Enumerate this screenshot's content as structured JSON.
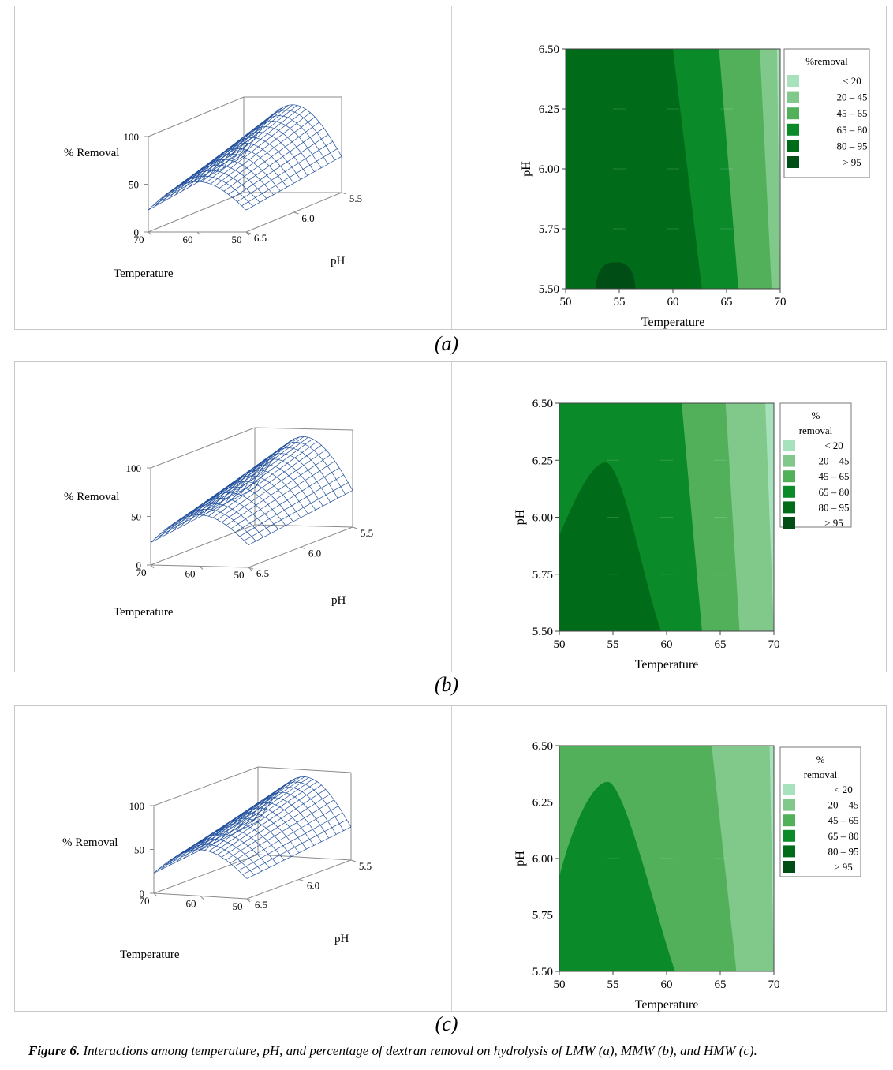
{
  "panels": [
    {
      "label": "(a)",
      "surface": {
        "z_axis_label": "% Removal",
        "x_axis_label": "Temperature",
        "y_axis_label": "pH",
        "z_ticks": [
          "0",
          "50",
          "100"
        ],
        "temp_ticks": [
          "70",
          "60",
          "50"
        ],
        "ph_ticks": [
          "6.5",
          "6.0",
          "5.5"
        ]
      },
      "legend_title_lines": [
        "%removal"
      ]
    },
    {
      "label": "(b)",
      "surface": {
        "z_axis_label": "% Removal",
        "x_axis_label": "Temperature",
        "y_axis_label": "pH",
        "z_ticks": [
          "0",
          "50",
          "100"
        ],
        "temp_ticks": [
          "70",
          "60",
          "50"
        ],
        "ph_ticks": [
          "6.5",
          "6.0",
          "5.5"
        ]
      },
      "legend_title_lines": [
        "%",
        "removal"
      ]
    },
    {
      "label": "(c)",
      "surface": {
        "z_axis_label": "% Removal",
        "x_axis_label": "Temperature",
        "y_axis_label": "pH",
        "z_ticks": [
          "0",
          "50",
          "100"
        ],
        "temp_ticks": [
          "70",
          "60",
          "50"
        ],
        "ph_ticks": [
          "6.5",
          "6.0",
          "5.5"
        ]
      },
      "legend_title_lines": [
        "%",
        "removal"
      ]
    }
  ],
  "chart_data": [
    {
      "type": "surface",
      "panel": "a",
      "xlabel": "Temperature",
      "ylabel": "pH",
      "zlabel": "% Removal",
      "x_ticks": [
        70,
        60,
        50
      ],
      "y_ticks": [
        6.5,
        6.0,
        5.5
      ],
      "z_ticks": [
        0,
        50,
        100
      ],
      "zlim": [
        0,
        100
      ],
      "colors": {
        "mesh": "#1f4e9c"
      }
    },
    {
      "type": "contour",
      "panel": "a",
      "xlabel": "Temperature",
      "ylabel": "pH",
      "xlim": [
        50,
        70
      ],
      "ylim": [
        5.5,
        6.5
      ],
      "x_ticks": [
        50,
        55,
        60,
        65,
        70
      ],
      "y_ticks": [
        "5.50",
        "5.75",
        "6.00",
        "6.25",
        "6.50"
      ],
      "legend_title": "%removal",
      "levels": [
        {
          "label": "< 20",
          "color": "#a8e2bc"
        },
        {
          "label": "20 – 45",
          "color": "#80c98a"
        },
        {
          "label": "45 – 65",
          "color": "#52b05a"
        },
        {
          "label": "65 – 80",
          "color": "#0b8a2a"
        },
        {
          "label": "80 – 95",
          "color": "#006b18"
        },
        {
          "label": "> 95",
          "color": "#004d16"
        }
      ],
      "boundaries": [
        {
          "between": "80 – 95 / 65 – 80",
          "temp_at_ph_6_50": 60.0,
          "temp_at_ph_5_50": 62.7
        },
        {
          "between": "65 – 80 / 45 – 65",
          "temp_at_ph_6_50": 64.3,
          "temp_at_ph_5_50": 66.1
        },
        {
          "between": "45 – 65 / 20 – 45",
          "temp_at_ph_6_50": 68.1,
          "temp_at_ph_5_50": 69.2
        },
        {
          "between": "20 – 45 / < 20",
          "temp_at_ph_6_50": 69.7,
          "temp_at_ph_5_50": 70.0
        }
      ],
      "peak_region": {
        "level": "> 95",
        "temp_range": [
          52.8,
          56.5
        ],
        "ph_top": 5.61
      }
    },
    {
      "type": "surface",
      "panel": "b",
      "xlabel": "Temperature",
      "ylabel": "pH",
      "zlabel": "% Removal",
      "x_ticks": [
        70,
        60,
        50
      ],
      "y_ticks": [
        6.5,
        6.0,
        5.5
      ],
      "z_ticks": [
        0,
        50,
        100
      ],
      "zlim": [
        0,
        100
      ],
      "colors": {
        "mesh": "#1f4e9c"
      }
    },
    {
      "type": "contour",
      "panel": "b",
      "xlabel": "Temperature",
      "ylabel": "pH",
      "xlim": [
        50,
        70
      ],
      "ylim": [
        5.5,
        6.5
      ],
      "x_ticks": [
        50,
        55,
        60,
        65,
        70
      ],
      "y_ticks": [
        "5.50",
        "5.75",
        "6.00",
        "6.25",
        "6.50"
      ],
      "legend_title": "% removal",
      "levels": [
        {
          "label": "< 20",
          "color": "#a8e2bc"
        },
        {
          "label": "20 – 45",
          "color": "#80c98a"
        },
        {
          "label": "45 – 65",
          "color": "#52b05a"
        },
        {
          "label": "65 – 80",
          "color": "#0b8a2a"
        },
        {
          "label": "80 – 95",
          "color": "#006b18"
        },
        {
          "label": "> 95",
          "color": "#004d16"
        }
      ],
      "boundaries": [
        {
          "between": "65 – 80 / 45 – 65",
          "temp_at_ph_6_50": 61.4,
          "temp_at_ph_5_50": 63.3
        },
        {
          "between": "45 – 65 / 20 – 45",
          "temp_at_ph_6_50": 65.5,
          "temp_at_ph_5_50": 66.8
        },
        {
          "between": "20 – 45 / < 20",
          "temp_at_ph_6_50": 69.2,
          "temp_at_ph_5_50": 70.0
        }
      ],
      "peak_region": {
        "level": "80 – 95",
        "peak_temp": 54.3,
        "ph_top": 6.24,
        "temp_at_ph_5_50": [
          50.0,
          59.5
        ]
      }
    },
    {
      "type": "surface",
      "panel": "c",
      "xlabel": "Temperature",
      "ylabel": "pH",
      "zlabel": "% Removal",
      "x_ticks": [
        70,
        60,
        50
      ],
      "y_ticks": [
        6.5,
        6.0,
        5.5
      ],
      "z_ticks": [
        0,
        50,
        100
      ],
      "zlim": [
        0,
        100
      ],
      "colors": {
        "mesh": "#1f4e9c"
      }
    },
    {
      "type": "contour",
      "panel": "c",
      "xlabel": "Temperature",
      "ylabel": "pH",
      "xlim": [
        50,
        70
      ],
      "ylim": [
        5.5,
        6.5
      ],
      "x_ticks": [
        50,
        55,
        60,
        65,
        70
      ],
      "y_ticks": [
        "5.50",
        "5.75",
        "6.00",
        "6.25",
        "6.50"
      ],
      "legend_title": "% removal",
      "levels": [
        {
          "label": "< 20",
          "color": "#a8e2bc"
        },
        {
          "label": "20 – 45",
          "color": "#80c98a"
        },
        {
          "label": "45 – 65",
          "color": "#52b05a"
        },
        {
          "label": "65 – 80",
          "color": "#0b8a2a"
        },
        {
          "label": "80 – 95",
          "color": "#006b18"
        },
        {
          "label": "> 95",
          "color": "#004d16"
        }
      ],
      "boundaries": [
        {
          "between": "45 – 65 / 20 – 45",
          "temp_at_ph_6_50": 64.2,
          "temp_at_ph_5_50": 66.5
        },
        {
          "between": "20 – 45 / < 20",
          "temp_at_ph_6_50": 69.6,
          "temp_at_ph_5_50": 70.0
        }
      ],
      "peak_region": {
        "level": "65 – 80",
        "peak_temp": 54.5,
        "ph_top": 6.34,
        "temp_at_ph_5_50": [
          50.0,
          60.8
        ]
      }
    }
  ],
  "caption": {
    "figure_number": "Figure 6.",
    "text": " Interactions among temperature, pH, and percentage of dextran removal on hydrolysis of LMW (a), MMW (b), and HMW (c)."
  }
}
